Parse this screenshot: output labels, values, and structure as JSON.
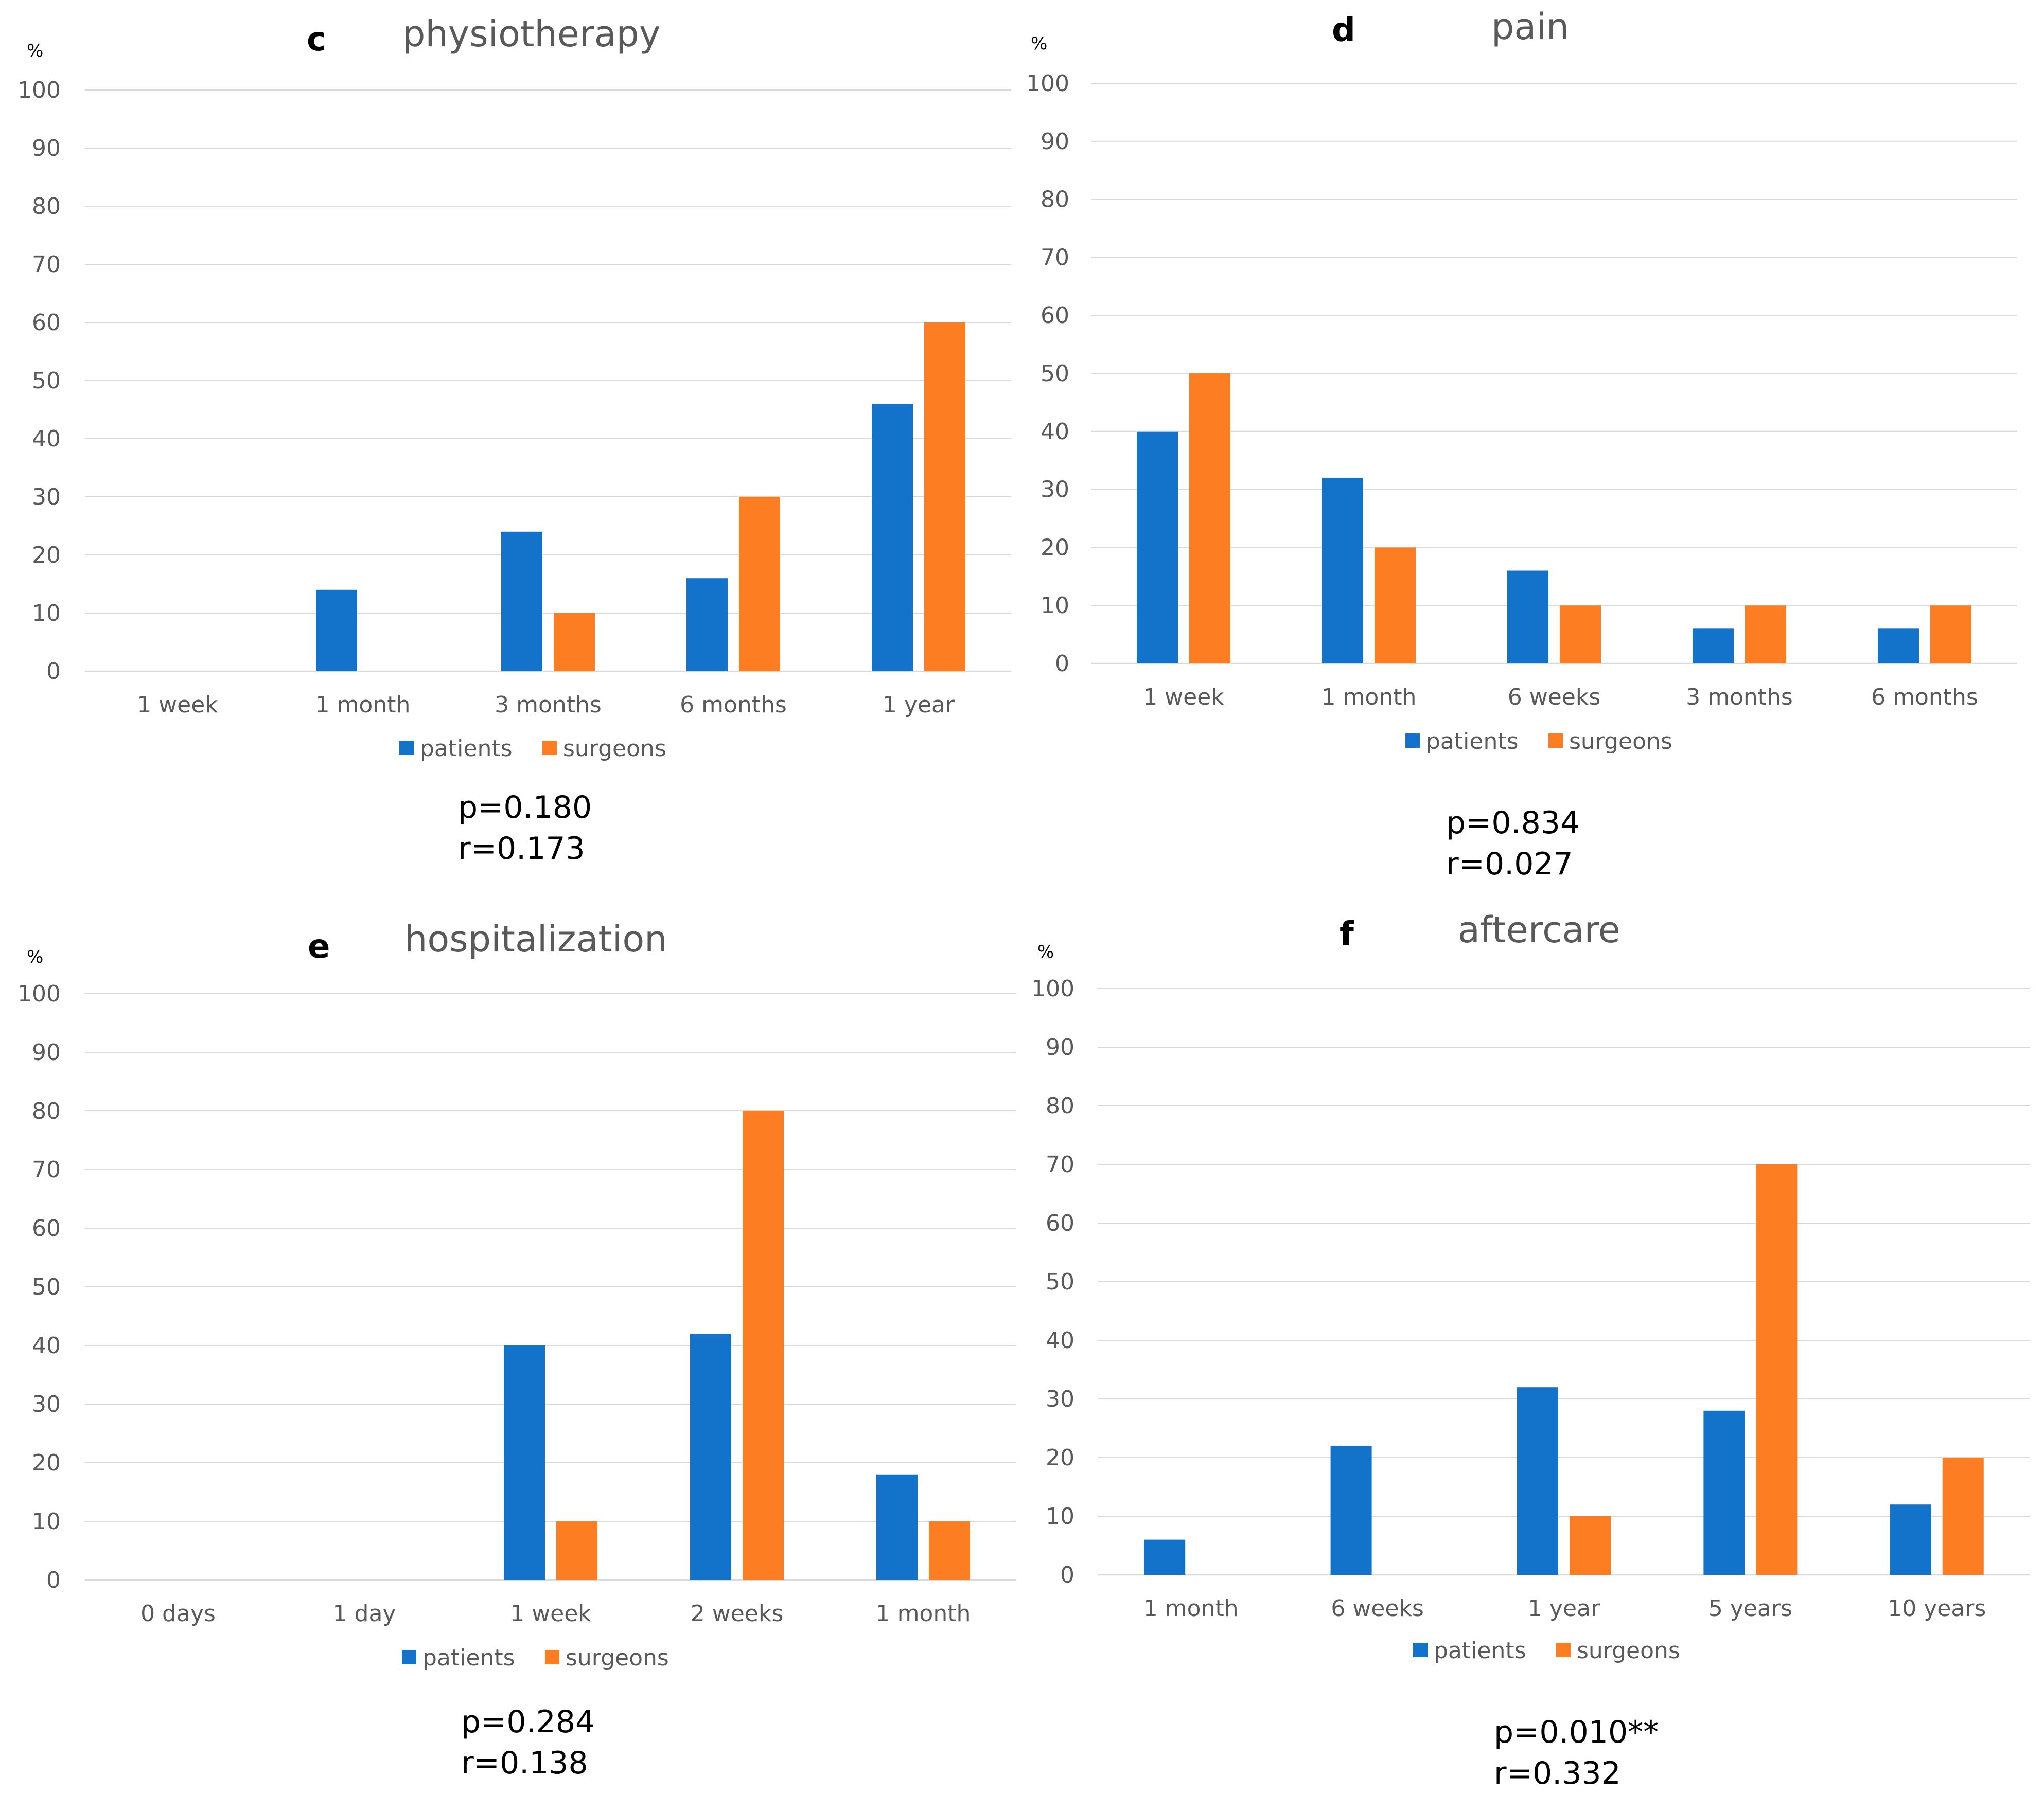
{
  "colors": {
    "patients": "#1372c9",
    "surgeons": "#fd7d23"
  },
  "chart_data": [
    {
      "id": "c",
      "type": "bar",
      "letter": "c",
      "title": "physiotherapy",
      "ylabel": "%",
      "ylim": [
        0,
        100
      ],
      "yticks": [
        0,
        10,
        20,
        30,
        40,
        50,
        60,
        70,
        80,
        90,
        100
      ],
      "categories": [
        "1 week",
        "1 month",
        "3 months",
        "6 months",
        "1 year"
      ],
      "series": [
        {
          "name": "patients",
          "values": [
            0,
            14,
            24,
            16,
            46
          ]
        },
        {
          "name": "surgeons",
          "values": [
            0,
            0,
            10,
            30,
            60
          ]
        }
      ],
      "legend": [
        "patients",
        "surgeons"
      ],
      "stats": [
        "p=0.180",
        "r=0.173"
      ]
    },
    {
      "id": "d",
      "type": "bar",
      "letter": "d",
      "title": "pain",
      "ylabel": "%",
      "ylim": [
        0,
        100
      ],
      "yticks": [
        0,
        10,
        20,
        30,
        40,
        50,
        60,
        70,
        80,
        90,
        100
      ],
      "categories": [
        "1 week",
        "1 month",
        "6 weeks",
        "3 months",
        "6 months"
      ],
      "series": [
        {
          "name": "patients",
          "values": [
            40,
            32,
            16,
            6,
            6
          ]
        },
        {
          "name": "surgeons",
          "values": [
            50,
            20,
            10,
            10,
            10
          ]
        }
      ],
      "legend": [
        "patients",
        "surgeons"
      ],
      "stats": [
        "p=0.834",
        "r=0.027"
      ]
    },
    {
      "id": "e",
      "type": "bar",
      "letter": "e",
      "title": "hospitalization",
      "ylabel": "%",
      "ylim": [
        0,
        100
      ],
      "yticks": [
        0,
        10,
        20,
        30,
        40,
        50,
        60,
        70,
        80,
        90,
        100
      ],
      "categories": [
        "0 days",
        "1 day",
        "1 week",
        "2 weeks",
        "1 month"
      ],
      "series": [
        {
          "name": "patients",
          "values": [
            0,
            0,
            40,
            42,
            18
          ]
        },
        {
          "name": "surgeons",
          "values": [
            0,
            0,
            10,
            80,
            10
          ]
        }
      ],
      "legend": [
        "patients",
        "surgeons"
      ],
      "stats": [
        "p=0.284",
        "r=0.138"
      ]
    },
    {
      "id": "f",
      "type": "bar",
      "letter": "f",
      "title": "aftercare",
      "ylabel": "%",
      "ylim": [
        0,
        100
      ],
      "yticks": [
        0,
        10,
        20,
        30,
        40,
        50,
        60,
        70,
        80,
        90,
        100
      ],
      "categories": [
        "1 month",
        "6 weeks",
        "1 year",
        "5 years",
        "10 years"
      ],
      "series": [
        {
          "name": "patients",
          "values": [
            6,
            22,
            32,
            28,
            12
          ]
        },
        {
          "name": "surgeons",
          "values": [
            0,
            0,
            10,
            70,
            20
          ]
        }
      ],
      "legend": [
        "patients",
        "surgeons"
      ],
      "stats": [
        "p=0.010**",
        "r=0.332"
      ]
    }
  ]
}
